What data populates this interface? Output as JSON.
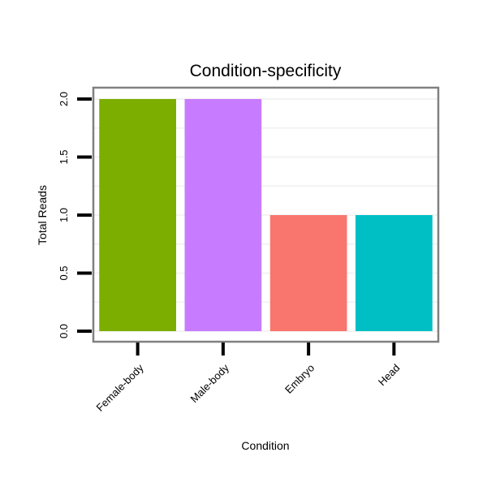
{
  "chart_data": {
    "type": "bar",
    "title": "Condition-specificity",
    "xlabel": "Condition",
    "ylabel": "Total Reads",
    "categories": [
      "Female-body",
      "Male-body",
      "Embryo",
      "Head"
    ],
    "values": [
      2,
      2,
      1,
      1
    ],
    "colors": [
      "#7CAE00",
      "#C77CFF",
      "#F8766D",
      "#00BFC4"
    ],
    "ylim": [
      0,
      2
    ],
    "yticks": [
      "0.0",
      "0.5",
      "1.0",
      "1.5",
      "2.0"
    ],
    "grid": true,
    "legend": "none"
  }
}
